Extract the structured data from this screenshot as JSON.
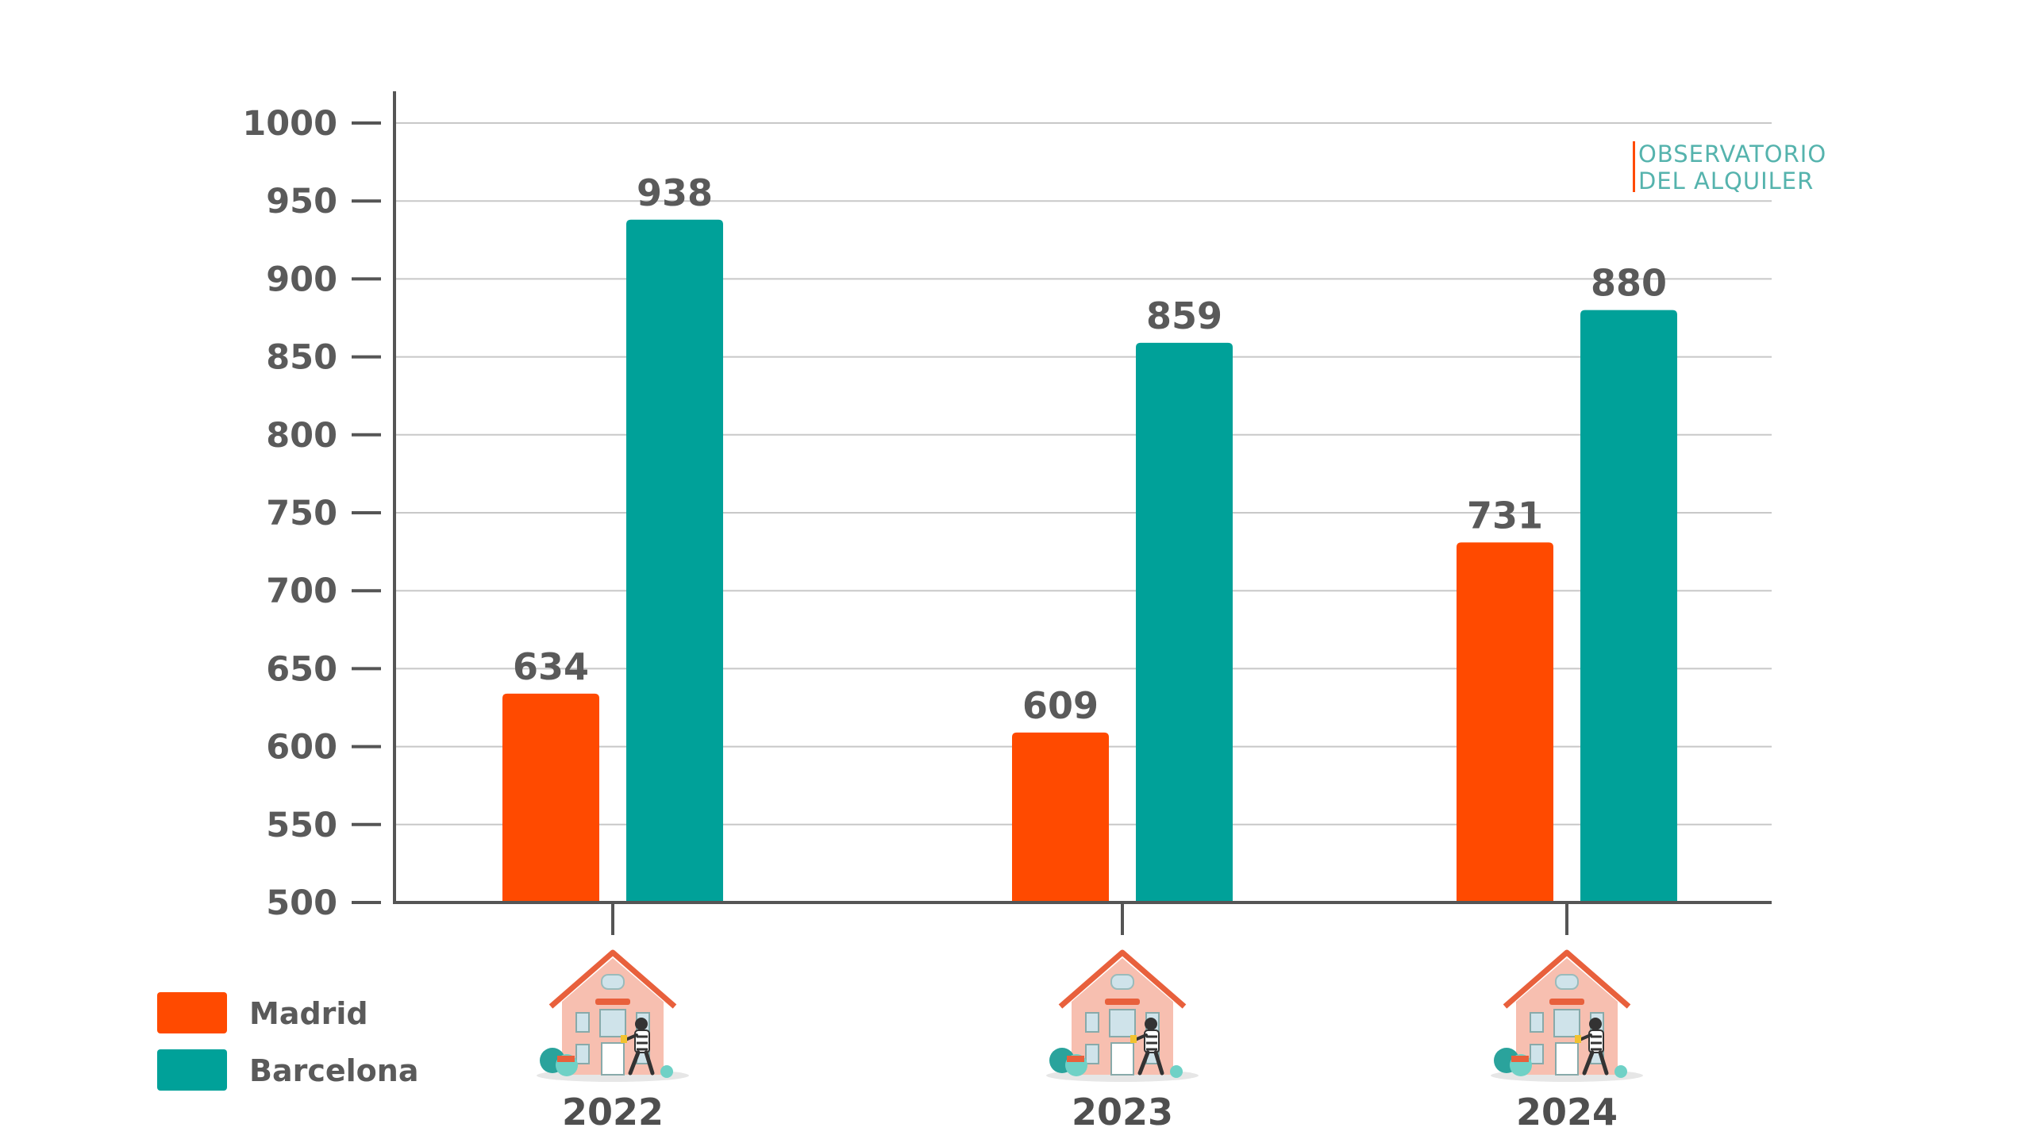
{
  "colors": {
    "madrid": "#FF4A00",
    "barcelona": "#00A199",
    "axis": "#555555",
    "grid": "#c8c8c8",
    "text": "#5a5a5a"
  },
  "logo": {
    "line1": "OBSERVATORIO",
    "line2": "DEL ALQUILER"
  },
  "chart_data": {
    "type": "bar",
    "categories": [
      "2022",
      "2023",
      "2024"
    ],
    "series": [
      {
        "name": "Madrid",
        "values": [
          634,
          609,
          731
        ]
      },
      {
        "name": "Barcelona",
        "values": [
          938,
          859,
          880
        ]
      }
    ],
    "y_ticks": [
      "500",
      "550",
      "600",
      "650",
      "700",
      "750",
      "800",
      "850",
      "900",
      "950",
      "1000"
    ],
    "ylim": [
      500,
      1000
    ],
    "grid": true,
    "legend_position": "bottom-left",
    "category_icon": "house-with-burglar-icon"
  }
}
